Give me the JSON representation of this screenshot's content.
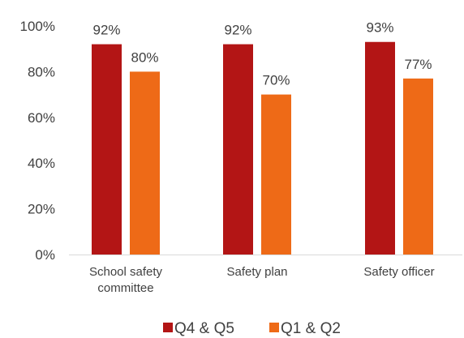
{
  "chart_data": {
    "type": "bar",
    "categories": [
      [
        "School safety",
        "committee"
      ],
      [
        "Safety plan"
      ],
      [
        "Safety officer"
      ]
    ],
    "series": [
      {
        "name": "Q4 & Q5",
        "color": "#B31515",
        "values": [
          92,
          92,
          93
        ],
        "labels": [
          "92%",
          "92%",
          "93%"
        ]
      },
      {
        "name": "Q1 & Q2",
        "color": "#EE6A17",
        "values": [
          80,
          70,
          77
        ],
        "labels": [
          "80%",
          "70%",
          "77%"
        ]
      }
    ],
    "yticks": [
      "0%",
      "20%",
      "40%",
      "60%",
      "80%",
      "100%"
    ],
    "ylim": [
      0,
      100
    ],
    "title": "",
    "xlabel": "",
    "ylabel": "",
    "grid": false,
    "legend": "bottom"
  }
}
